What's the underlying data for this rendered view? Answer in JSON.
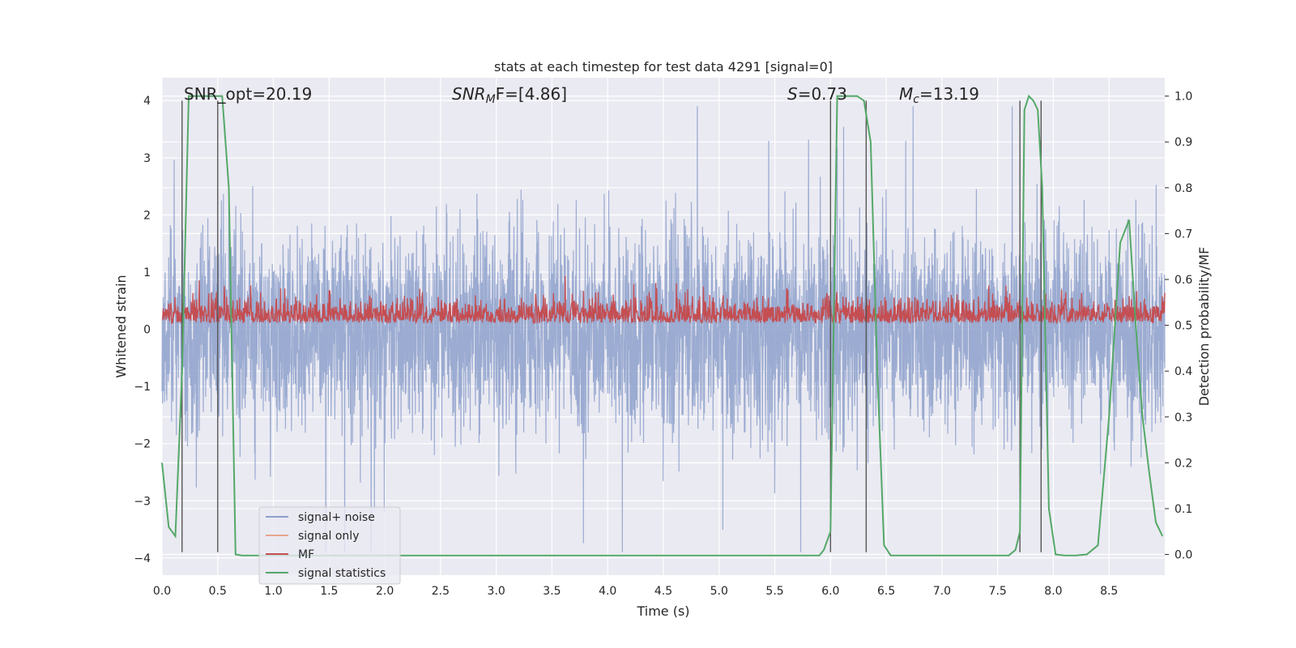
{
  "chart_data": {
    "type": "line",
    "title": "stats at each timestep for test data 4291 [signal=0]",
    "xlabel": "Time (s)",
    "ylabel": "Whitened strain",
    "ylabel_right": "Detection probability/MF",
    "xlim": [
      0,
      9.0
    ],
    "ylim": [
      -4.3,
      4.4
    ],
    "ylim_right": [
      -0.045,
      1.04
    ],
    "x_ticks": [
      "0.0",
      "0.5",
      "1.0",
      "1.5",
      "2.0",
      "2.5",
      "3.0",
      "3.5",
      "4.0",
      "4.5",
      "5.0",
      "5.5",
      "6.0",
      "6.5",
      "7.0",
      "7.5",
      "8.0",
      "8.5"
    ],
    "y_ticks": [
      "−4",
      "−3",
      "−2",
      "−1",
      "0",
      "1",
      "2",
      "3",
      "4"
    ],
    "y_ticks_right": [
      "0.0",
      "0.1",
      "0.2",
      "0.3",
      "0.4",
      "0.5",
      "0.6",
      "0.7",
      "0.8",
      "0.9",
      "1.0"
    ],
    "grid": true,
    "legend_position": "lower-left",
    "annotations": {
      "snr_opt": "SNR_opt=20.19",
      "snr_mf": "SNR",
      "snr_mf_sub": "M",
      "snr_mf_rest": "F=[4.86]",
      "s_label": "S",
      "s_value": "=0.73",
      "mc_label": "M",
      "mc_sub": "c",
      "mc_value": "=13.19"
    },
    "vertical_lines_x": [
      0.18,
      0.5,
      6.0,
      6.32,
      7.7,
      7.89
    ],
    "series": [
      {
        "name": "signal+ noise",
        "color": "#8da0cb",
        "axis": "left",
        "description_amplitude": 1.6
      },
      {
        "name": "signal only",
        "color": "#e8a58a",
        "axis": "left"
      },
      {
        "name": "MF",
        "color": "#c44e52",
        "axis": "right"
      },
      {
        "name": "signal statistics",
        "color": "#55a868",
        "axis": "right",
        "x": [
          0.0,
          0.06,
          0.12,
          0.18,
          0.24,
          0.3,
          0.36,
          0.42,
          0.48,
          0.54,
          0.6,
          0.66,
          0.72,
          0.8,
          1.0,
          2.0,
          3.0,
          4.0,
          5.0,
          5.9,
          5.94,
          6.0,
          6.06,
          6.12,
          6.18,
          6.24,
          6.3,
          6.36,
          6.42,
          6.48,
          6.54,
          6.6,
          7.0,
          7.6,
          7.66,
          7.7,
          7.74,
          7.78,
          7.82,
          7.86,
          7.9,
          7.96,
          8.02,
          8.1,
          8.2,
          8.3,
          8.4,
          8.5,
          8.6,
          8.68,
          8.74,
          8.8,
          8.86,
          8.92,
          8.98
        ],
        "y": [
          0.2,
          0.06,
          0.04,
          0.4,
          1.0,
          1.0,
          1.0,
          1.0,
          1.0,
          1.0,
          0.8,
          0.0,
          -0.002,
          -0.002,
          -0.002,
          -0.002,
          -0.002,
          -0.002,
          -0.002,
          -0.002,
          0.01,
          0.05,
          1.0,
          1.0,
          1.0,
          1.0,
          0.99,
          0.9,
          0.4,
          0.02,
          -0.002,
          -0.002,
          -0.002,
          -0.002,
          0.01,
          0.05,
          0.97,
          1.0,
          0.99,
          0.97,
          0.8,
          0.1,
          0.0,
          -0.002,
          -0.002,
          0.0,
          0.02,
          0.3,
          0.68,
          0.73,
          0.5,
          0.3,
          0.18,
          0.07,
          0.04
        ]
      }
    ]
  }
}
